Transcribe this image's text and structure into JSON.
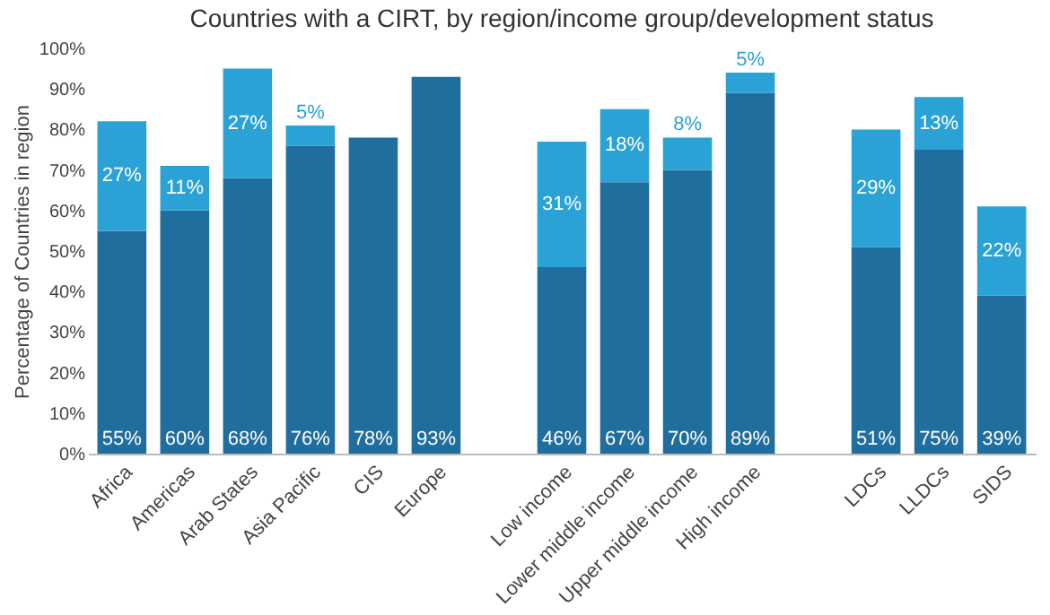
{
  "chart_data": {
    "type": "bar",
    "stacked": true,
    "title": "Countries with a CIRT, by region/income group/development status",
    "ylabel": "Percentage of Countries in region",
    "categories": [
      "Africa",
      "Americas",
      "Arab States",
      "Asia Pacific",
      "CIS",
      "Europe",
      null,
      "Low income",
      "Lower middle income",
      "Upper middle income",
      "High income",
      null,
      "LDCs",
      "LLDCs",
      "SIDS"
    ],
    "ylim": [
      0,
      100
    ],
    "yticks": [
      {
        "value": 0,
        "label": "0%"
      },
      {
        "value": 10,
        "label": "10%"
      },
      {
        "value": 20,
        "label": "20%"
      },
      {
        "value": 30,
        "label": "30%"
      },
      {
        "value": 40,
        "label": "40%"
      },
      {
        "value": 50,
        "label": "50%"
      },
      {
        "value": 60,
        "label": "60%"
      },
      {
        "value": 70,
        "label": "70%"
      },
      {
        "value": 80,
        "label": "80%"
      },
      {
        "value": 90,
        "label": "90%"
      },
      {
        "value": 100,
        "label": "100%"
      }
    ],
    "series": [
      {
        "color": "#1f6e9e",
        "values": [
          55,
          60,
          68,
          76,
          78,
          93,
          null,
          46,
          67,
          70,
          89,
          null,
          51,
          75,
          39
        ],
        "value_labels": [
          "55%",
          "60%",
          "68%",
          "76%",
          "78%",
          "93%",
          null,
          "46%",
          "67%",
          "70%",
          "89%",
          null,
          "51%",
          "75%",
          "39%"
        ]
      },
      {
        "color": "#2aa2d6",
        "values": [
          27,
          11,
          27,
          5,
          null,
          null,
          null,
          31,
          18,
          8,
          5,
          null,
          29,
          13,
          22
        ],
        "value_labels": [
          "27%",
          "11%",
          "27%",
          "5%",
          null,
          null,
          null,
          "31%",
          "18%",
          "8%",
          "5%",
          null,
          "29%",
          "13%",
          "22%"
        ]
      }
    ]
  }
}
